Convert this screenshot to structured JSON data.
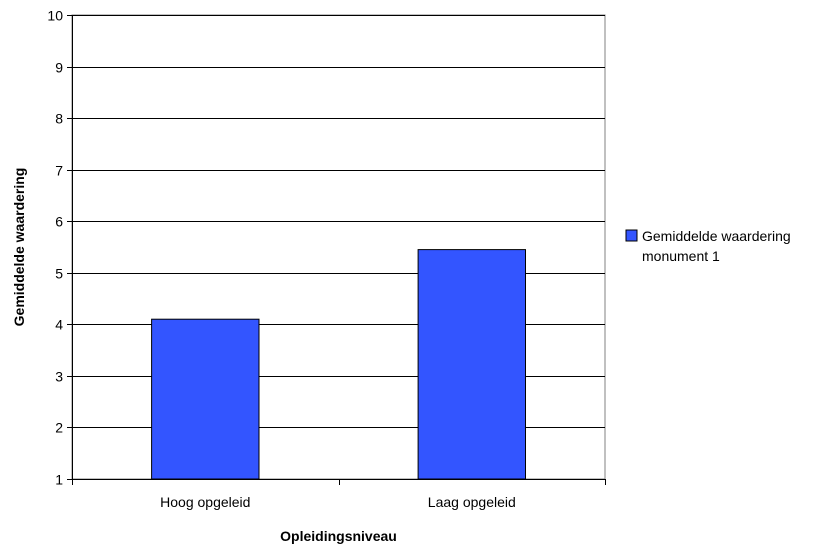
{
  "chart_data": {
    "type": "bar",
    "categories": [
      "Hoog opgeleid",
      "Laag opgeleid"
    ],
    "series": [
      {
        "name": "Gemiddelde waardering monument 1",
        "values": [
          4.1,
          5.45
        ],
        "color": "#3355FF"
      }
    ],
    "ylim": [
      1,
      10
    ],
    "yticks": [
      1,
      2,
      3,
      4,
      5,
      6,
      7,
      8,
      9,
      10
    ],
    "xlabel": "Opleidingsniveau",
    "ylabel": "Gemiddelde waardering",
    "grid": true,
    "legend": {
      "position": "right",
      "lines": [
        "Gemiddelde waardering",
        "monument 1"
      ]
    }
  }
}
